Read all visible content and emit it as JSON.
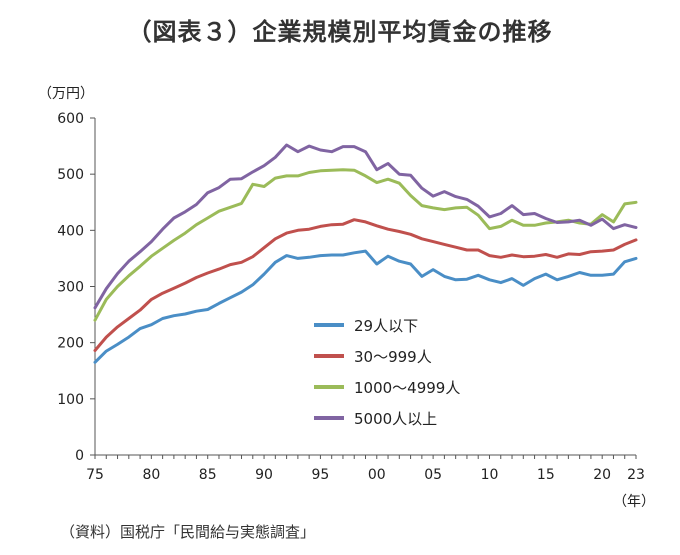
{
  "title": "（図表３）企業規模別平均賃金の推移",
  "source": "（資料）国税庁「民間給与実態調査」",
  "chart_data": {
    "type": "line",
    "title": "（図表３）企業規模別平均賃金の推移",
    "y_unit_label": "（万円）",
    "x_unit_label": "（年）",
    "ylim": [
      0,
      600
    ],
    "y_ticks": [
      0,
      100,
      200,
      300,
      400,
      500,
      600
    ],
    "xlim": [
      1975,
      2023
    ],
    "x_ticks": [
      1975,
      1980,
      1985,
      1990,
      1995,
      2000,
      2005,
      2010,
      2015,
      2020,
      2023
    ],
    "x_tick_labels": [
      "75",
      "80",
      "85",
      "90",
      "95",
      "00",
      "05",
      "10",
      "15",
      "20",
      "23"
    ],
    "grid": false,
    "legend_position": "center",
    "x": [
      1975,
      1976,
      1977,
      1978,
      1979,
      1980,
      1981,
      1982,
      1983,
      1984,
      1985,
      1986,
      1987,
      1988,
      1989,
      1990,
      1991,
      1992,
      1993,
      1994,
      1995,
      1996,
      1997,
      1998,
      1999,
      2000,
      2001,
      2002,
      2003,
      2004,
      2005,
      2006,
      2007,
      2008,
      2009,
      2010,
      2011,
      2012,
      2013,
      2014,
      2015,
      2016,
      2017,
      2018,
      2019,
      2020,
      2021,
      2022,
      2023
    ],
    "series": [
      {
        "name": "29人以下",
        "color": "#4a8ec6",
        "values": [
          165,
          185,
          197,
          210,
          225,
          232,
          243,
          248,
          251,
          256,
          259,
          270,
          280,
          290,
          303,
          322,
          343,
          355,
          350,
          352,
          355,
          356,
          356,
          360,
          363,
          340,
          354,
          345,
          340,
          318,
          330,
          318,
          312,
          313,
          320,
          312,
          307,
          314,
          302,
          314,
          322,
          312,
          318,
          325,
          320,
          320,
          322,
          344,
          350
        ]
      },
      {
        "name": "30～999人",
        "color": "#c0504d",
        "values": [
          186,
          210,
          228,
          243,
          258,
          277,
          288,
          297,
          306,
          316,
          324,
          331,
          339,
          343,
          353,
          369,
          385,
          395,
          400,
          402,
          407,
          410,
          411,
          419,
          415,
          408,
          402,
          398,
          393,
          385,
          380,
          375,
          370,
          365,
          365,
          355,
          352,
          356,
          353,
          354,
          357,
          352,
          358,
          357,
          362,
          363,
          365,
          375,
          383
        ]
      },
      {
        "name": "1000～4999人",
        "color": "#9bbb59",
        "values": [
          240,
          277,
          300,
          319,
          336,
          354,
          368,
          382,
          395,
          410,
          422,
          434,
          441,
          448,
          482,
          478,
          493,
          497,
          497,
          503,
          506,
          507,
          508,
          507,
          497,
          485,
          491,
          484,
          462,
          444,
          440,
          437,
          440,
          441,
          427,
          403,
          407,
          418,
          409,
          409,
          413,
          415,
          418,
          413,
          411,
          428,
          415,
          447,
          450
        ]
      },
      {
        "name": "5000人以上",
        "color": "#8064a2",
        "values": [
          262,
          296,
          323,
          345,
          362,
          380,
          402,
          422,
          433,
          446,
          467,
          476,
          491,
          492,
          504,
          515,
          530,
          552,
          540,
          550,
          543,
          540,
          549,
          549,
          540,
          508,
          519,
          500,
          498,
          475,
          461,
          469,
          460,
          455,
          443,
          424,
          430,
          444,
          428,
          430,
          421,
          414,
          415,
          418,
          409,
          420,
          403,
          410,
          405
        ]
      }
    ]
  }
}
